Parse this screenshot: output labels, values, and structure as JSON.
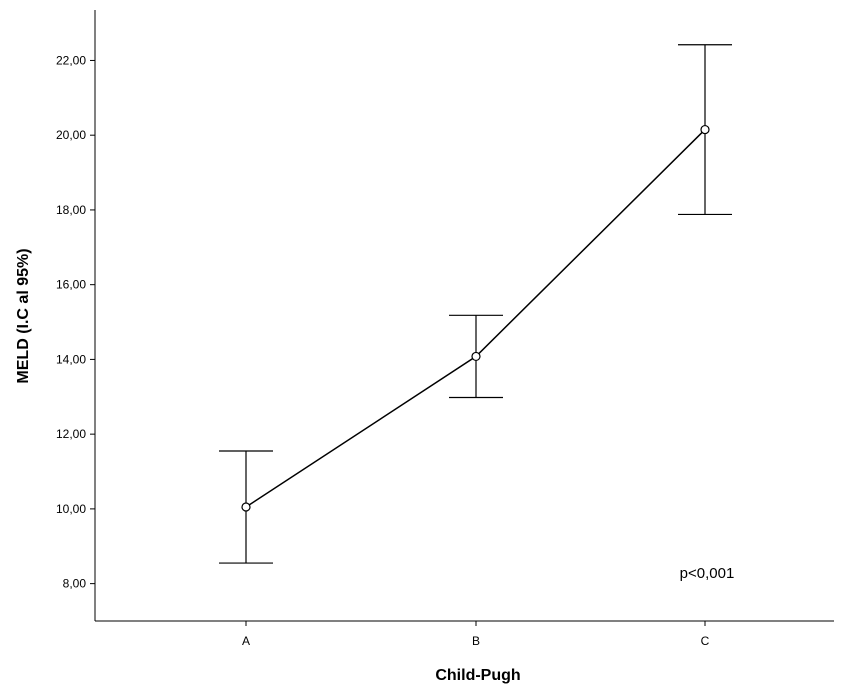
{
  "chart_data": {
    "type": "line",
    "categories": [
      "A",
      "B",
      "C"
    ],
    "series": [
      {
        "values": [
          10.05,
          14.08,
          20.15
        ],
        "ci_lower": [
          8.55,
          12.98,
          17.88
        ],
        "ci_upper": [
          11.55,
          15.18,
          22.42
        ]
      }
    ],
    "xlabel": "Child-Pugh",
    "ylabel": "MELD (I.C al 95%)",
    "ylim": [
      7.0,
      23.35
    ],
    "yticks": [
      8,
      10,
      12,
      14,
      16,
      18,
      20,
      22
    ],
    "ytick_labels": [
      "8,00",
      "10,00",
      "12,00",
      "14,00",
      "16,00",
      "18,00",
      "20,00",
      "22,00"
    ],
    "annotation": "p<0,001",
    "grid": false,
    "colors": {
      "line": "#000000",
      "background": "#ffffff"
    }
  }
}
